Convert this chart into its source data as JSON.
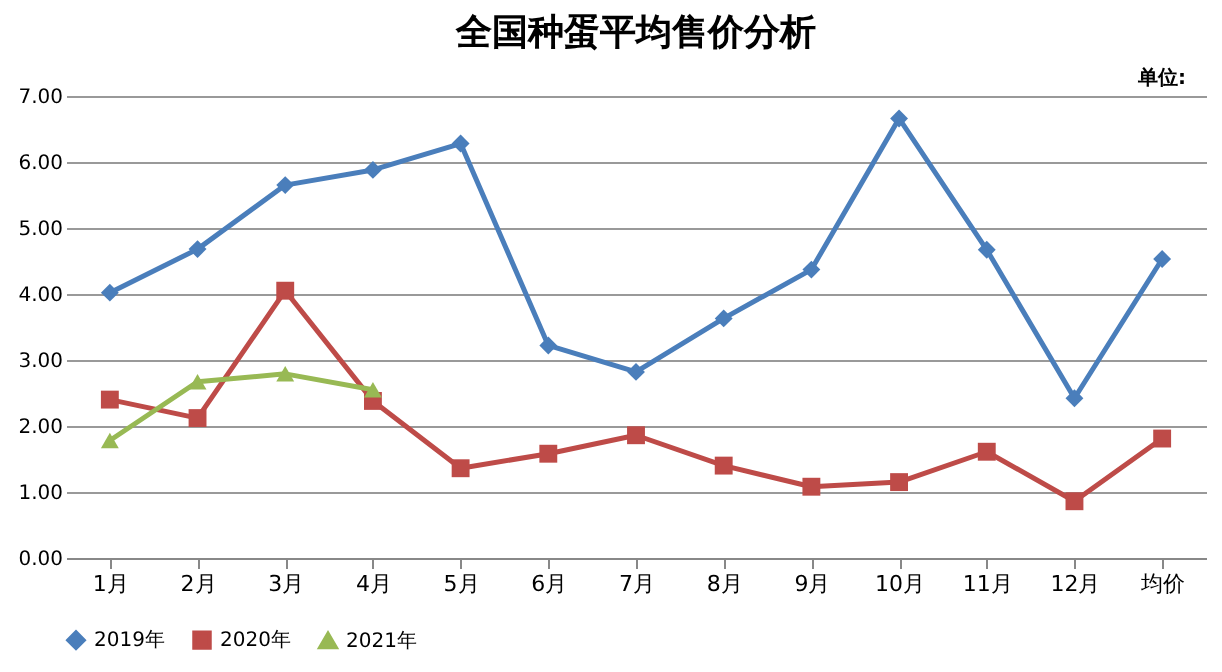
{
  "chart_data": {
    "type": "line",
    "title": "全国种蛋平均售价分析",
    "annotations": [
      "单位:"
    ],
    "categories": [
      "1月",
      "2月",
      "3月",
      "4月",
      "5月",
      "6月",
      "7月",
      "8月",
      "9月",
      "10月",
      "11月",
      "12月",
      "均价"
    ],
    "series": [
      {
        "name": "2019年",
        "color": "#4a7ebb",
        "marker": "diamond",
        "values": [
          4.02,
          4.68,
          5.65,
          5.88,
          6.28,
          3.22,
          2.82,
          3.63,
          4.37,
          6.66,
          4.67,
          2.42,
          4.53
        ]
      },
      {
        "name": "2020年",
        "color": "#be4b48",
        "marker": "square",
        "values": [
          2.4,
          2.12,
          4.05,
          2.38,
          1.36,
          1.58,
          1.86,
          1.4,
          1.08,
          1.15,
          1.61,
          0.86,
          1.81
        ]
      },
      {
        "name": "2021年",
        "color": "#98b954",
        "marker": "triangle",
        "values": [
          1.78,
          2.67,
          2.79,
          2.55,
          null,
          null,
          null,
          null,
          null,
          null,
          null,
          null,
          null
        ]
      }
    ],
    "ylim": [
      0,
      7
    ],
    "yticks": [
      {
        "value": 0,
        "label": "0.00"
      },
      {
        "value": 1,
        "label": "1.00"
      },
      {
        "value": 2,
        "label": "2.00"
      },
      {
        "value": 3,
        "label": "3.00"
      },
      {
        "value": 4,
        "label": "4.00"
      },
      {
        "value": 5,
        "label": "5.00"
      },
      {
        "value": 6,
        "label": "6.00"
      },
      {
        "value": 7,
        "label": "7.00"
      }
    ],
    "grid": "y",
    "legend": "bottom",
    "line_style": "solid"
  }
}
